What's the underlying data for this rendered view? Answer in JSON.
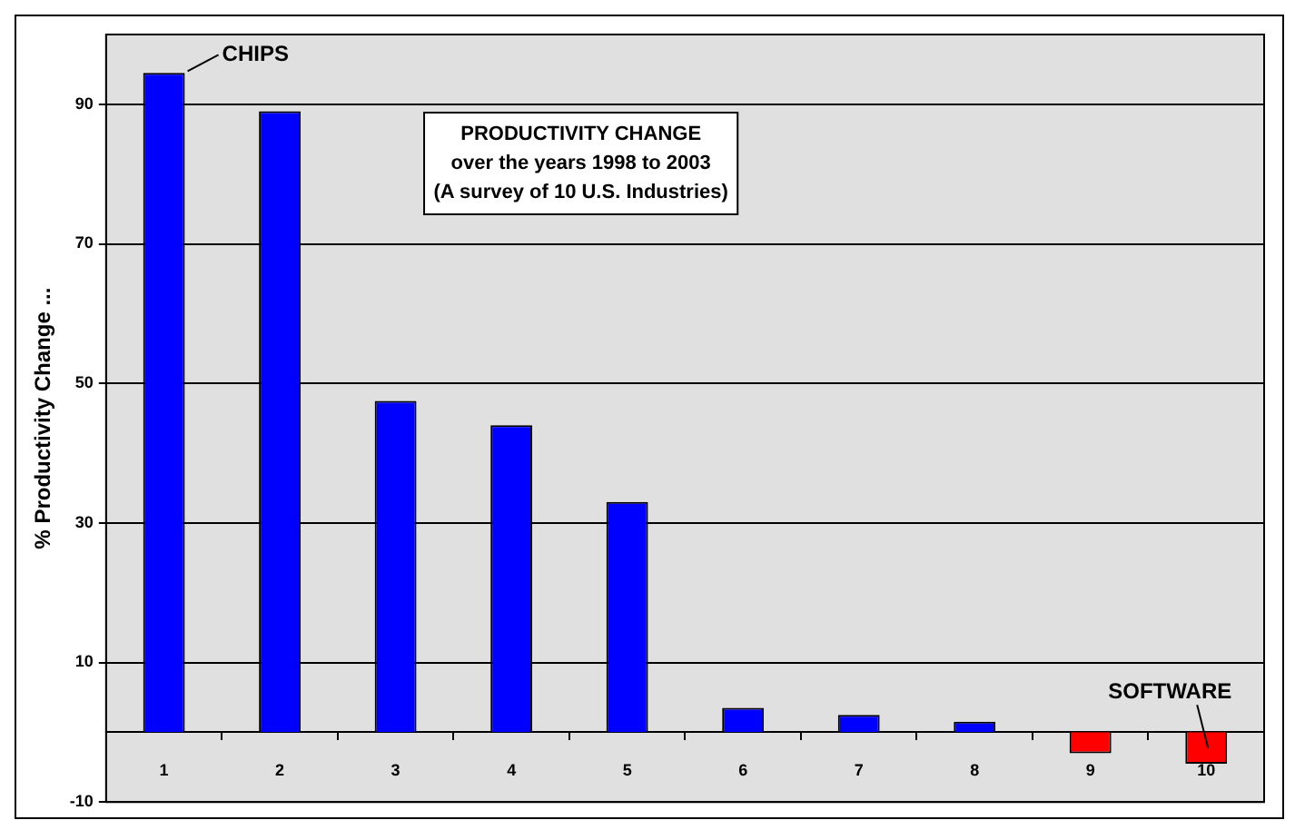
{
  "chart_data": {
    "type": "bar",
    "title": "PRODUCTIVITY CHANGE",
    "subtitle": "over the years 1998 to 2003\n(A survey of 10 U.S. Industries)",
    "ylabel": "% Productivity Change ...",
    "categories": [
      "1",
      "2",
      "3",
      "4",
      "5",
      "6",
      "7",
      "8",
      "9",
      "10"
    ],
    "values": [
      94.5,
      89,
      47.5,
      44,
      33,
      3.5,
      2.5,
      1.5,
      -3,
      -4.5
    ],
    "colors": [
      "#0000ff",
      "#0000ff",
      "#0000ff",
      "#0000ff",
      "#0000ff",
      "#0000ff",
      "#0000ff",
      "#0000ff",
      "#ff0000",
      "#ff0000"
    ],
    "ylim": [
      -10,
      100
    ],
    "yticks": [
      -10,
      10,
      30,
      50,
      70,
      90
    ],
    "grid": "y",
    "legend": false,
    "annotations": [
      {
        "text": "CHIPS",
        "x": "1",
        "y": 94.5
      },
      {
        "text": "SOFTWARE",
        "x": "10",
        "y": -4.5
      }
    ]
  }
}
